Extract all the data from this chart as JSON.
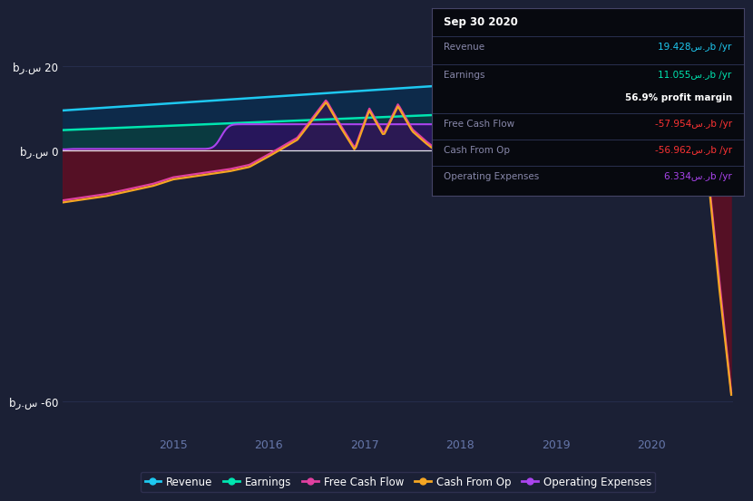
{
  "background_color": "#1b2035",
  "plot_bg_color": "#1b2035",
  "revenue_color": "#1ec8f0",
  "earnings_color": "#00e5b0",
  "fcf_color": "#e040a0",
  "cashop_color": "#f5a623",
  "opex_color": "#aa44ee",
  "revenue_fill": "#0a2a44",
  "earnings_fill": "#0a3340",
  "fcf_fill_neg": "#5a1020",
  "fcf_fill_pos": "#3a1555",
  "cashop_fill_neg": "#5a1020",
  "cashop_fill_pos": "#3a1555",
  "opex_fill": "#3a1555",
  "grid_color": "#2a3255",
  "zero_line_color": "#ffffff",
  "legend_items": [
    "Revenue",
    "Earnings",
    "Free Cash Flow",
    "Cash From Op",
    "Operating Expenses"
  ],
  "legend_colors": [
    "#1ec8f0",
    "#00e5b0",
    "#e040a0",
    "#f5a623",
    "#aa44ee"
  ],
  "info_box_bg": "#07090f",
  "info_box_border": "#2a3050",
  "info_title": "Sep 30 2020",
  "revenue_label": "Revenue",
  "revenue_value": "19.428س.رb /yr",
  "earnings_label": "Earnings",
  "earnings_value": "11.055س.رb /yr",
  "margin_text": "56.9% profit margin",
  "fcf_label": "Free Cash Flow",
  "fcf_value": "-57.954س.رb /yr",
  "cashop_label": "Cash From Op",
  "cashop_value": "-56.962س.رb /yr",
  "opex_label": "Operating Expenses",
  "opex_value": "6.334س.رb /yr",
  "label_color": "#8888aa",
  "red_value_color": "#ff3333",
  "white_color": "#ffffff",
  "ytick_pos": [
    20,
    0,
    -60
  ],
  "ytick_labels": [
    "bر.س 20",
    "bر.س 0",
    "bر.س -60"
  ],
  "xtick_labels": [
    "2015",
    "2016",
    "2017",
    "2018",
    "2019",
    "2020"
  ],
  "xtick_pos": [
    2015,
    2016,
    2017,
    2018,
    2019,
    2020
  ],
  "xlim": [
    2013.85,
    2020.85
  ],
  "ylim": [
    -68,
    23
  ]
}
